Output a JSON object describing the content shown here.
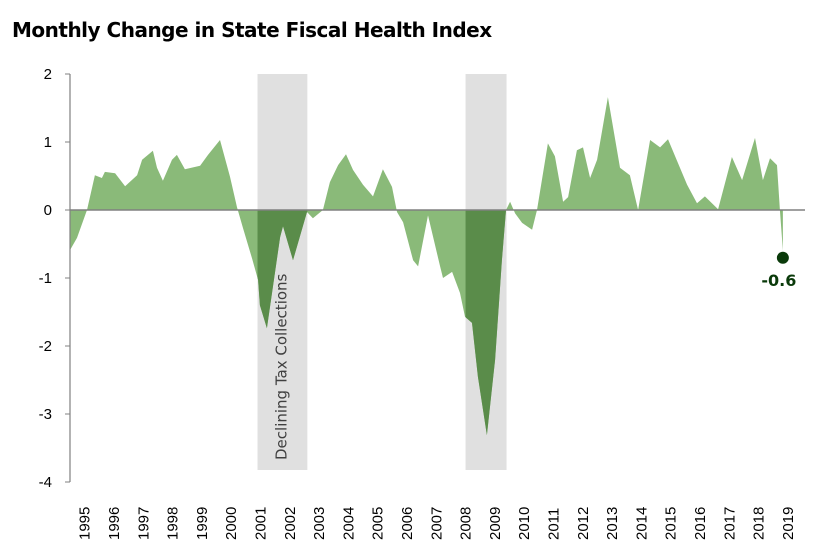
{
  "chart_data": {
    "type": "area",
    "title": "Monthly Change in State Fiscal Health Index",
    "xlabel": "",
    "ylabel": "",
    "ylim": [
      -4,
      2
    ],
    "yticks": [
      "2",
      "1",
      "0",
      "-1",
      "-2",
      "-3",
      "-4"
    ],
    "xlim": [
      1995,
      2019.9
    ],
    "xticks": [
      "1995",
      "1996",
      "1997",
      "1998",
      "1999",
      "2000",
      "2001",
      "2002",
      "2003",
      "2004",
      "2005",
      "2006",
      "2007",
      "2008",
      "2009",
      "2010",
      "2011",
      "2012",
      "2013",
      "2014",
      "2015",
      "2016",
      "2017",
      "2018",
      "2019"
    ],
    "grid": false,
    "colors": {
      "area": "#8aba79",
      "recession_negative": "#5a8c4a",
      "band": "#e0e0e0",
      "marker": "#0a3a0a",
      "zero_line": "#808080"
    },
    "shaded_bands": [
      {
        "start": 2001.4,
        "end": 2003.1,
        "label": "Declining Tax Collections"
      },
      {
        "start": 2008.5,
        "end": 2009.9,
        "label": ""
      }
    ],
    "annotation": {
      "x": 2019.33,
      "y": -0.6,
      "label": "-0.6"
    },
    "points": [
      [
        1995.0,
        -0.59
      ],
      [
        1995.24,
        -0.41
      ],
      [
        1995.58,
        0
      ],
      [
        1995.85,
        0.51
      ],
      [
        1996.09,
        0.47
      ],
      [
        1996.19,
        0.56
      ],
      [
        1996.54,
        0.54
      ],
      [
        1996.88,
        0.35
      ],
      [
        1997.29,
        0.51
      ],
      [
        1997.46,
        0.74
      ],
      [
        1997.83,
        0.87
      ],
      [
        1997.97,
        0.62
      ],
      [
        1998.17,
        0.43
      ],
      [
        1998.48,
        0.74
      ],
      [
        1998.65,
        0.81
      ],
      [
        1998.92,
        0.6
      ],
      [
        1999.44,
        0.65
      ],
      [
        1999.71,
        0.81
      ],
      [
        2000.12,
        1.03
      ],
      [
        2000.46,
        0.49
      ],
      [
        2000.7,
        0.04
      ],
      [
        2000.9,
        -0.26
      ],
      [
        2001.21,
        -0.71
      ],
      [
        2001.42,
        -1.03
      ],
      [
        2001.48,
        -1.4
      ],
      [
        2001.72,
        -1.74
      ],
      [
        2002.17,
        -0.4
      ],
      [
        2002.27,
        -0.24
      ],
      [
        2002.61,
        -0.74
      ],
      [
        2003.09,
        -0.03
      ],
      [
        2003.29,
        -0.12
      ],
      [
        2003.63,
        0
      ],
      [
        2003.87,
        0.41
      ],
      [
        2004.15,
        0.66
      ],
      [
        2004.42,
        0.82
      ],
      [
        2004.66,
        0.59
      ],
      [
        2005.0,
        0.37
      ],
      [
        2005.34,
        0.2
      ],
      [
        2005.68,
        0.6
      ],
      [
        2005.99,
        0.34
      ],
      [
        2006.16,
        -0.03
      ],
      [
        2006.37,
        -0.18
      ],
      [
        2006.71,
        -0.74
      ],
      [
        2006.88,
        -0.83
      ],
      [
        2007.22,
        -0.08
      ],
      [
        2007.63,
        -0.83
      ],
      [
        2007.73,
        -1.0
      ],
      [
        2008.04,
        -0.91
      ],
      [
        2008.31,
        -1.22
      ],
      [
        2008.48,
        -1.57
      ],
      [
        2008.72,
        -1.66
      ],
      [
        2008.92,
        -2.45
      ],
      [
        2009.23,
        -3.31
      ],
      [
        2009.51,
        -2.2
      ],
      [
        2009.74,
        -0.74
      ],
      [
        2009.88,
        0
      ],
      [
        2010.02,
        0.12
      ],
      [
        2010.19,
        -0.05
      ],
      [
        2010.43,
        -0.19
      ],
      [
        2010.77,
        -0.29
      ],
      [
        2010.94,
        0
      ],
      [
        2011.31,
        0.98
      ],
      [
        2011.55,
        0.79
      ],
      [
        2011.83,
        0.12
      ],
      [
        2012.0,
        0.19
      ],
      [
        2012.3,
        0.88
      ],
      [
        2012.51,
        0.92
      ],
      [
        2012.75,
        0.47
      ],
      [
        2012.99,
        0.74
      ],
      [
        2013.36,
        1.66
      ],
      [
        2013.77,
        0.62
      ],
      [
        2014.11,
        0.51
      ],
      [
        2014.39,
        0
      ],
      [
        2014.8,
        1.03
      ],
      [
        2015.14,
        0.92
      ],
      [
        2015.41,
        1.04
      ],
      [
        2015.75,
        0.69
      ],
      [
        2016.06,
        0.37
      ],
      [
        2016.4,
        0.1
      ],
      [
        2016.67,
        0.2
      ],
      [
        2017.12,
        0.01
      ],
      [
        2017.59,
        0.78
      ],
      [
        2017.94,
        0.44
      ],
      [
        2018.38,
        1.06
      ],
      [
        2018.65,
        0.44
      ],
      [
        2018.89,
        0.76
      ],
      [
        2019.13,
        0.66
      ],
      [
        2019.23,
        0
      ],
      [
        2019.33,
        -0.6
      ]
    ]
  }
}
